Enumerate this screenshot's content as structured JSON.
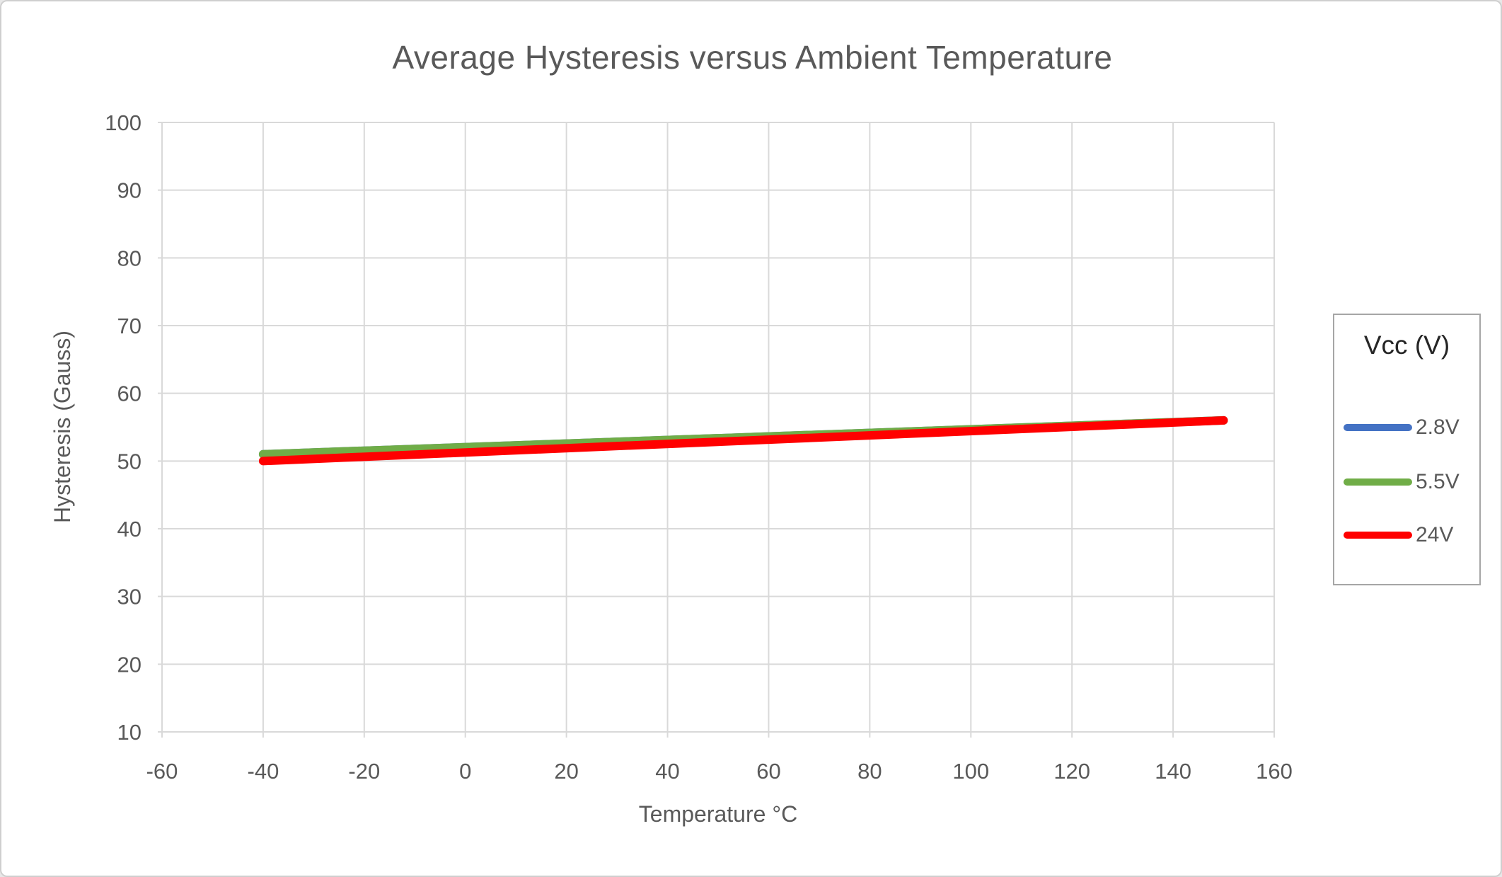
{
  "window": {
    "background": "#ffffff",
    "border_color": "#cfcfcf"
  },
  "colors": {
    "text": "#595959",
    "grid": "#d9d9d9",
    "legend_border": "#a6a6a6",
    "legend_title_text": "#262626"
  },
  "chart_data": {
    "type": "line",
    "title": "Average Hysteresis versus Ambient Temperature",
    "xlabel": "Temperature °C",
    "ylabel": "Hysteresis (Gauss)",
    "xlim": [
      -60,
      160
    ],
    "ylim": [
      10,
      100
    ],
    "x_ticks": [
      -60,
      -40,
      -20,
      0,
      20,
      40,
      60,
      80,
      100,
      120,
      140,
      160
    ],
    "y_ticks": [
      10,
      20,
      30,
      40,
      50,
      60,
      70,
      80,
      90,
      100
    ],
    "grid": true,
    "legend": {
      "title": "Vcc (V)",
      "position": "right"
    },
    "series": [
      {
        "label": "2.8V",
        "color": "#4472C4",
        "x": [
          -40,
          150
        ],
        "y": [
          51,
          56
        ]
      },
      {
        "label": "5.5V",
        "color": "#70AD47",
        "x": [
          -40,
          150
        ],
        "y": [
          51,
          56
        ]
      },
      {
        "label": "24V",
        "color": "#FF0000",
        "x": [
          -40,
          150
        ],
        "y": [
          50,
          56
        ]
      }
    ]
  }
}
